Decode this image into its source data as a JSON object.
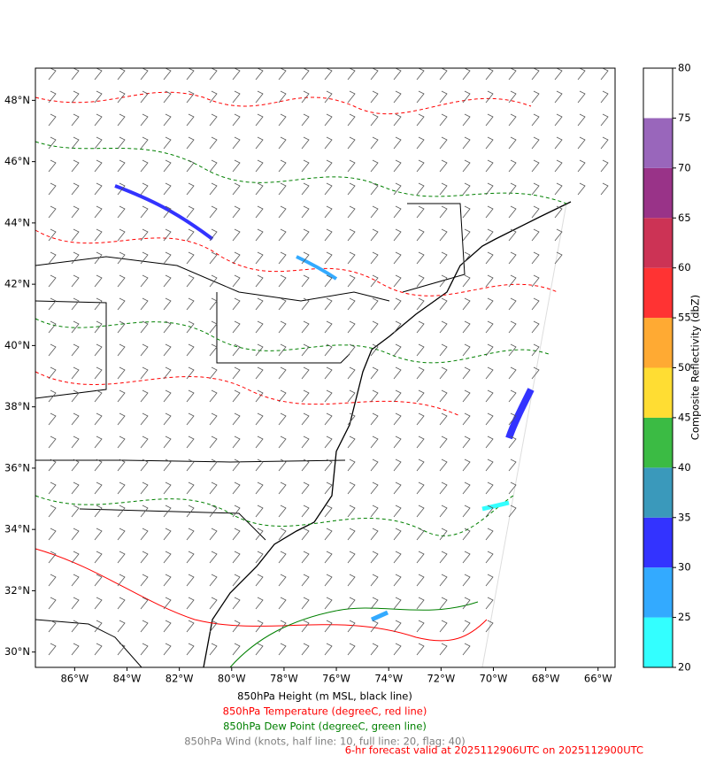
{
  "map": {
    "xlim": [
      -87.5,
      -65.35
    ],
    "ylim": [
      29.5,
      49.05
    ],
    "xticks": [
      {
        "value": -86,
        "label": "86°W"
      },
      {
        "value": -84,
        "label": "84°W"
      },
      {
        "value": -82,
        "label": "82°W"
      },
      {
        "value": -80,
        "label": "80°W"
      },
      {
        "value": -78,
        "label": "78°W"
      },
      {
        "value": -76,
        "label": "76°W"
      },
      {
        "value": -74,
        "label": "74°W"
      },
      {
        "value": -72,
        "label": "72°W"
      },
      {
        "value": -70,
        "label": "70°W"
      },
      {
        "value": -68,
        "label": "68°W"
      },
      {
        "value": -66,
        "label": "66°W"
      }
    ],
    "yticks": [
      {
        "value": 30,
        "label": "30°N"
      },
      {
        "value": 32,
        "label": "32°N"
      },
      {
        "value": 34,
        "label": "34°N"
      },
      {
        "value": 36,
        "label": "36°N"
      },
      {
        "value": 38,
        "label": "38°N"
      },
      {
        "value": 40,
        "label": "40°N"
      },
      {
        "value": 42,
        "label": "42°N"
      },
      {
        "value": 44,
        "label": "44°N"
      },
      {
        "value": 46,
        "label": "46°N"
      },
      {
        "value": 48,
        "label": "48°N"
      }
    ]
  },
  "colorbar": {
    "label": "Composite Reflectivity (dbZ)",
    "lim": [
      20,
      80
    ],
    "ticks": [
      20,
      25,
      30,
      35,
      40,
      45,
      50,
      55,
      60,
      65,
      70,
      75,
      80
    ],
    "colors": [
      "#33ffff",
      "#33aaff",
      "#3333ff",
      "#3a99bb",
      "#3bbb44",
      "#ffdd33",
      "#ffaa33",
      "#ff3333",
      "#cc3355",
      "#993388",
      "#9966bb",
      "#ffffff"
    ]
  },
  "captions": [
    {
      "text": "850hPa Height (m MSL, black line)",
      "color": "#000000"
    },
    {
      "text": "850hPa Temperature (degreeC, red line)",
      "color": "#ff0000"
    },
    {
      "text": "850hPa Dew Point (degreeC, green line)",
      "color": "#008000"
    },
    {
      "text": "850hPa Wind (knots, half line: 10, full line: 20, flag: 40)",
      "color": "#808080"
    }
  ],
  "forecast_note": {
    "text": "6-hr forecast valid at 2025112906UTC on 2025112900UTC",
    "color": "#ff0000"
  }
}
